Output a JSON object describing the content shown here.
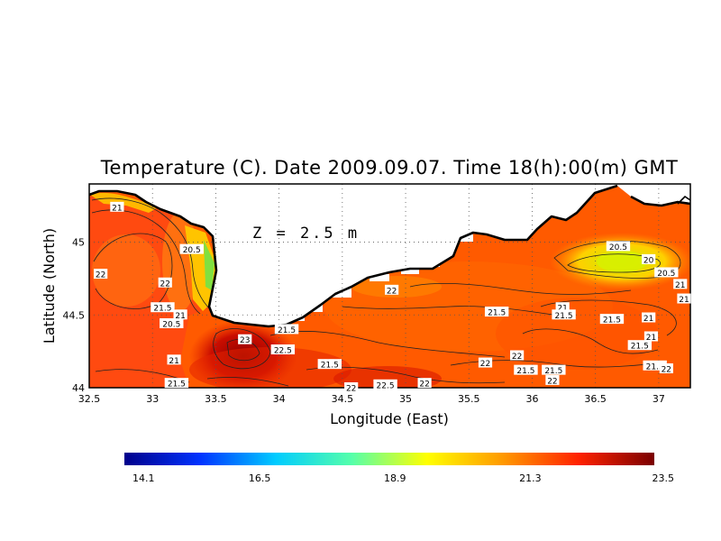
{
  "chart_data": {
    "type": "heatmap",
    "title": "Temperature (C). Date 2009.09.07. Time 18(h):00(m) GMT",
    "xlabel": "Longitude (East)",
    "ylabel": "Latitude (North)",
    "annotation": "Z = 2.5 m",
    "xlim": [
      32.5,
      37.25
    ],
    "ylim": [
      44.0,
      45.4
    ],
    "x_ticks": [
      "32.5",
      "33",
      "33.5",
      "34",
      "34.5",
      "35",
      "35.5",
      "36",
      "36.5",
      "37"
    ],
    "y_ticks": [
      "44",
      "44.5",
      "45"
    ],
    "colorbar": {
      "min": 14.1,
      "max": 23.5,
      "tick_labels": [
        "14.1",
        "16.5",
        "18.9",
        "21.3",
        "23.5"
      ],
      "colors": [
        "#00008b",
        "#0033ff",
        "#00ccff",
        "#55ffaa",
        "#ffff00",
        "#ff9900",
        "#ff2200",
        "#7a0000"
      ]
    },
    "contour_labels": [
      {
        "text": "21",
        "lon": 32.72,
        "lat": 45.24
      },
      {
        "text": "20.5",
        "lon": 33.31,
        "lat": 44.95
      },
      {
        "text": "22",
        "lon": 32.59,
        "lat": 44.78
      },
      {
        "text": "22",
        "lon": 33.1,
        "lat": 44.72
      },
      {
        "text": "21.5",
        "lon": 33.08,
        "lat": 44.55
      },
      {
        "text": "21",
        "lon": 33.22,
        "lat": 44.5
      },
      {
        "text": "20.5",
        "lon": 33.15,
        "lat": 44.44
      },
      {
        "text": "21",
        "lon": 33.17,
        "lat": 44.19
      },
      {
        "text": "21.5",
        "lon": 33.19,
        "lat": 44.03
      },
      {
        "text": "21.5",
        "lon": 34.06,
        "lat": 44.4
      },
      {
        "text": "23",
        "lon": 33.73,
        "lat": 44.33
      },
      {
        "text": "22.5",
        "lon": 34.03,
        "lat": 44.26
      },
      {
        "text": "21.5",
        "lon": 34.4,
        "lat": 44.16
      },
      {
        "text": "22",
        "lon": 34.89,
        "lat": 44.67
      },
      {
        "text": "21.5",
        "lon": 35.72,
        "lat": 44.52
      },
      {
        "text": "22",
        "lon": 35.15,
        "lat": 44.03
      },
      {
        "text": "22.5",
        "lon": 34.84,
        "lat": 44.02
      },
      {
        "text": "22",
        "lon": 34.57,
        "lat": 44.0
      },
      {
        "text": "22",
        "lon": 35.63,
        "lat": 44.17
      },
      {
        "text": "21.5",
        "lon": 35.95,
        "lat": 44.12
      },
      {
        "text": "21.5",
        "lon": 36.17,
        "lat": 44.12
      },
      {
        "text": "22",
        "lon": 35.88,
        "lat": 44.22
      },
      {
        "text": "22",
        "lon": 36.16,
        "lat": 44.05
      },
      {
        "text": "21",
        "lon": 36.24,
        "lat": 44.55
      },
      {
        "text": "21.5",
        "lon": 36.25,
        "lat": 44.5
      },
      {
        "text": "21.5",
        "lon": 36.63,
        "lat": 44.47
      },
      {
        "text": "21",
        "lon": 36.92,
        "lat": 44.48
      },
      {
        "text": "21",
        "lon": 36.94,
        "lat": 44.35
      },
      {
        "text": "21.5",
        "lon": 36.85,
        "lat": 44.29
      },
      {
        "text": "21.5",
        "lon": 36.97,
        "lat": 44.15
      },
      {
        "text": "22",
        "lon": 37.06,
        "lat": 44.13
      },
      {
        "text": "20.5",
        "lon": 36.68,
        "lat": 44.97
      },
      {
        "text": "20",
        "lon": 36.92,
        "lat": 44.88
      },
      {
        "text": "20.5",
        "lon": 37.06,
        "lat": 44.79
      },
      {
        "text": "21",
        "lon": 37.17,
        "lat": 44.71
      },
      {
        "text": "21",
        "lon": 37.2,
        "lat": 44.61
      }
    ]
  }
}
